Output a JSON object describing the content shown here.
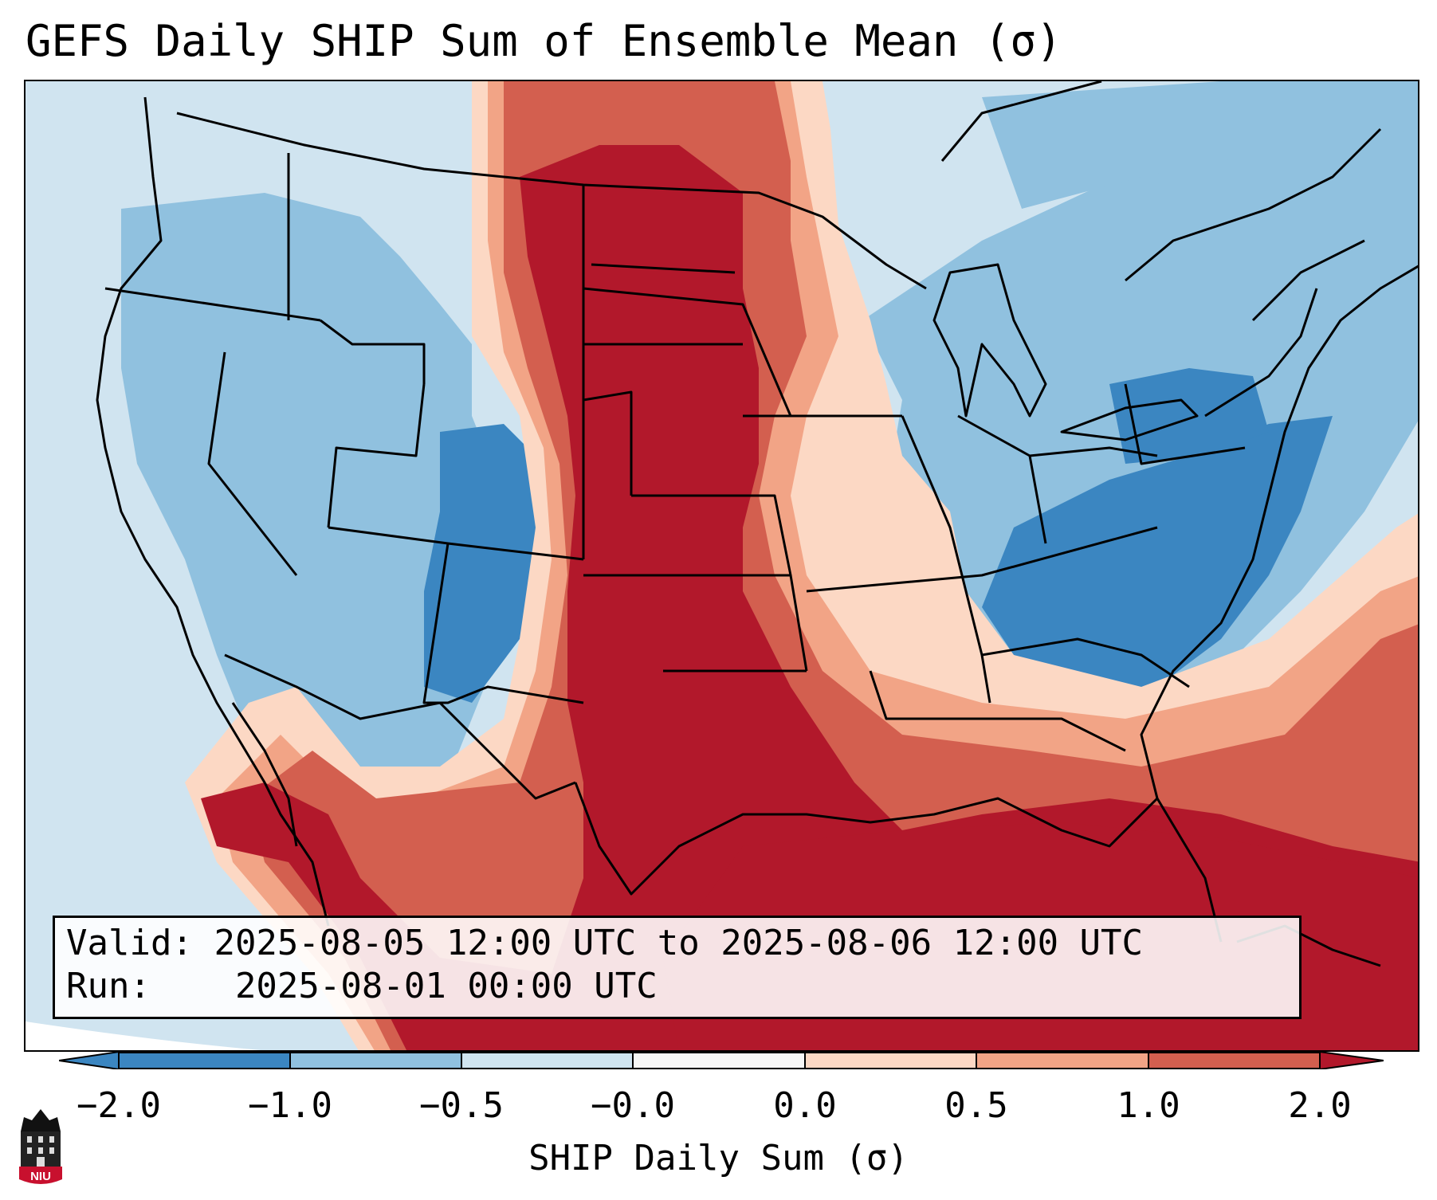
{
  "title": "GEFS Daily SHIP Sum of Ensemble Mean (σ)",
  "info": {
    "valid_label": "Valid:",
    "valid_value": "2025-08-05 12:00 UTC to 2025-08-06 12:00 UTC",
    "run_label": "Run:",
    "run_value": "2025-08-01 00:00 UTC"
  },
  "colorbar": {
    "label": "SHIP Daily Sum (σ)",
    "ticks": [
      "−2.0",
      "−1.0",
      "−0.5",
      "−0.0",
      "0.0",
      "0.5",
      "1.0",
      "2.0"
    ],
    "bin_colors": [
      "#3b86c1",
      "#90c1df",
      "#d0e4f0",
      "#f7f7f7",
      "#fcd8c4",
      "#f2a486",
      "#d35f4f",
      "#b2182b"
    ]
  },
  "logo": {
    "text": "NIU"
  },
  "colors": {
    "strong_neg": "#3b86c1",
    "mod_neg": "#90c1df",
    "weak_neg": "#d0e4f0",
    "weak_pos": "#fcd8c4",
    "mod_pos": "#f2a486",
    "pos": "#d35f4f",
    "strong_pos": "#b2182b"
  }
}
